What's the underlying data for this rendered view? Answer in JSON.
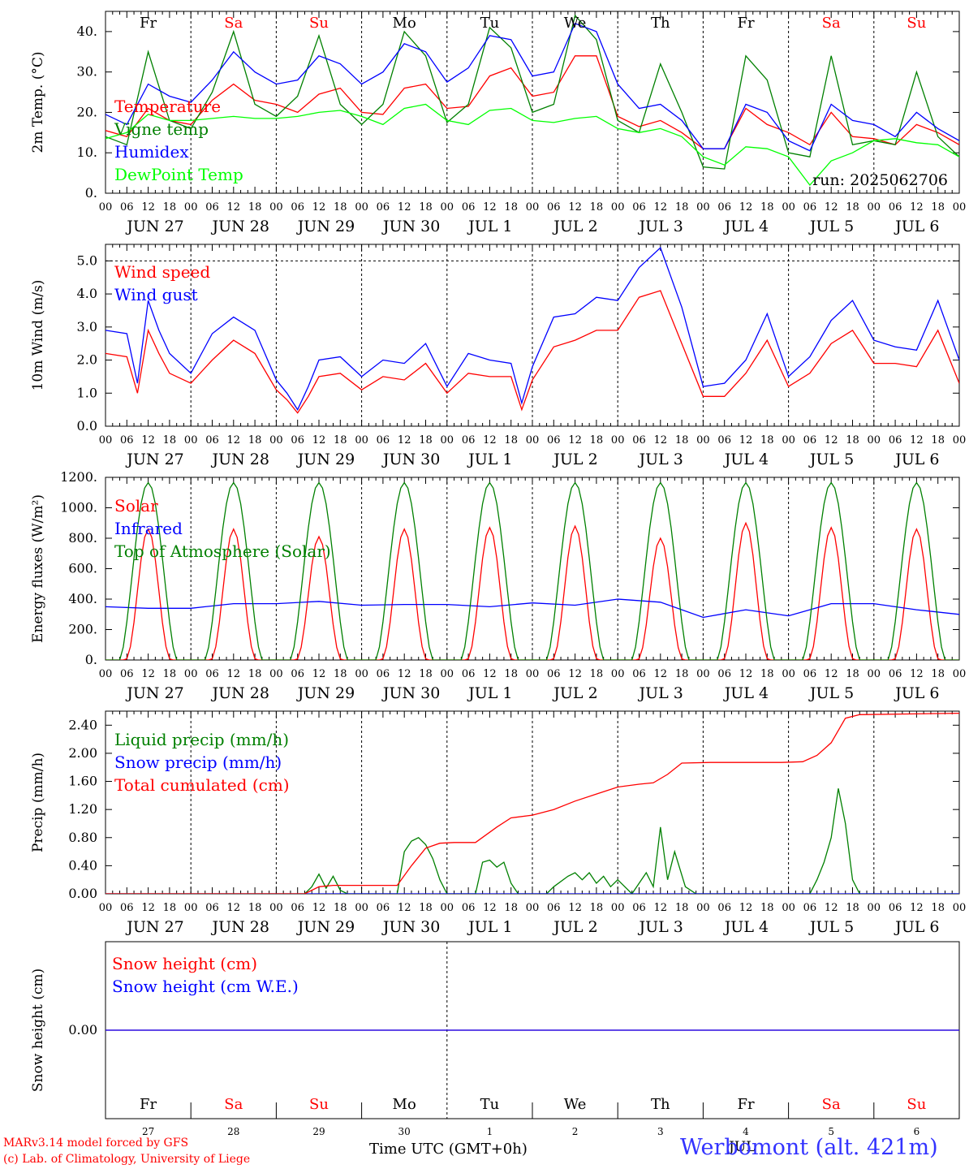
{
  "chart_data": [
    {
      "id": "temp",
      "type": "line",
      "ylabel": "2m Temp. (°C)",
      "ylim": [
        0,
        45
      ],
      "yticks": [
        "0.",
        "10.",
        "20.",
        "30.",
        "40."
      ],
      "ytick_values": [
        0,
        10,
        20,
        30,
        40
      ],
      "hlines": [],
      "x_unit": "hours since 2025-06-27 00 UTC",
      "xlim": [
        0,
        240
      ],
      "series": [
        {
          "name": "Temperature",
          "color": "#ff0000",
          "x": [
            0,
            6,
            12,
            18,
            24,
            30,
            36,
            42,
            48,
            54,
            60,
            66,
            72,
            78,
            84,
            90,
            96,
            102,
            108,
            114,
            120,
            126,
            132,
            138,
            144,
            150,
            156,
            162,
            168,
            174,
            180,
            186,
            192,
            198,
            204,
            210,
            216,
            222,
            228,
            234,
            240
          ],
          "y": [
            15.5,
            14,
            21,
            18,
            17,
            23,
            27,
            23,
            22,
            20,
            24.5,
            26,
            20,
            19.5,
            26,
            27,
            21,
            21.5,
            29,
            31,
            24,
            25,
            34,
            34,
            19,
            16.5,
            18,
            15,
            11,
            11,
            21,
            17,
            15,
            12,
            20,
            14,
            13.5,
            12,
            17,
            15,
            12
          ]
        },
        {
          "name": "Vigne temp",
          "color": "#008000",
          "x": [
            0,
            6,
            12,
            18,
            24,
            30,
            36,
            42,
            48,
            54,
            60,
            66,
            72,
            78,
            84,
            90,
            96,
            102,
            108,
            114,
            120,
            126,
            132,
            138,
            144,
            150,
            156,
            162,
            168,
            174,
            180,
            186,
            192,
            198,
            204,
            210,
            216,
            222,
            228,
            234,
            240
          ],
          "y": [
            14,
            12,
            35,
            18,
            16,
            25,
            40,
            22,
            19,
            24,
            39,
            22,
            17,
            22,
            40,
            34,
            17.5,
            22,
            41,
            36,
            20,
            22,
            44,
            38,
            18,
            15,
            32,
            20,
            6.5,
            6,
            34,
            28,
            10,
            9,
            34,
            12,
            13,
            12,
            30,
            14,
            9
          ]
        },
        {
          "name": "Humidex",
          "color": "#0000ff",
          "x": [
            0,
            6,
            12,
            18,
            24,
            30,
            36,
            42,
            48,
            54,
            60,
            66,
            72,
            78,
            84,
            90,
            96,
            102,
            108,
            114,
            120,
            126,
            132,
            138,
            144,
            150,
            156,
            162,
            168,
            174,
            180,
            186,
            192,
            198,
            204,
            210,
            216,
            222,
            228,
            234,
            240
          ],
          "y": [
            19.5,
            17,
            27,
            24,
            22.5,
            28,
            35,
            30,
            27,
            28,
            34,
            32,
            27,
            30,
            37,
            35,
            27.5,
            31,
            39,
            38,
            29,
            30,
            42,
            40,
            27,
            21,
            22,
            18,
            11,
            11,
            22,
            20,
            13,
            10.5,
            22,
            18,
            17,
            14,
            20,
            16,
            13
          ]
        },
        {
          "name": "DewPoint Temp",
          "color": "#00ff00",
          "x": [
            0,
            6,
            12,
            18,
            24,
            30,
            36,
            42,
            48,
            54,
            60,
            66,
            72,
            78,
            84,
            90,
            96,
            102,
            108,
            114,
            120,
            126,
            132,
            138,
            144,
            150,
            156,
            162,
            168,
            174,
            180,
            186,
            192,
            198,
            204,
            210,
            216,
            222,
            228,
            234,
            240
          ],
          "y": [
            13.5,
            15,
            19.5,
            18,
            18,
            18.5,
            19,
            18.5,
            18.5,
            19,
            20,
            20.5,
            19,
            17,
            21,
            22,
            18,
            17,
            20.5,
            21,
            18,
            17.5,
            18.5,
            19,
            16,
            15,
            16,
            14,
            9,
            7,
            11.5,
            11,
            9,
            2,
            8,
            10,
            13,
            13.5,
            12.5,
            12,
            9
          ]
        }
      ],
      "annotation": "run: 2025062706"
    },
    {
      "id": "wind",
      "type": "line",
      "ylabel": "10m Wind (m/s)",
      "ylim": [
        0,
        5.5
      ],
      "yticks": [
        "0.0",
        "1.0",
        "2.0",
        "3.0",
        "4.0",
        "5.0"
      ],
      "ytick_values": [
        0,
        1,
        2,
        3,
        4,
        5
      ],
      "hlines": [
        5
      ],
      "x_unit": "hours since 2025-06-27 00 UTC",
      "xlim": [
        0,
        240
      ],
      "series": [
        {
          "name": "Wind speed",
          "color": "#ff0000",
          "x": [
            0,
            6,
            9,
            12,
            15,
            18,
            24,
            30,
            36,
            42,
            48,
            51,
            54,
            57,
            60,
            66,
            72,
            78,
            84,
            90,
            96,
            102,
            108,
            114,
            117,
            120,
            126,
            132,
            138,
            144,
            150,
            156,
            162,
            168,
            174,
            180,
            186,
            192,
            198,
            204,
            210,
            216,
            222,
            228,
            234,
            240
          ],
          "y": [
            2.2,
            2.1,
            1.0,
            2.9,
            2.2,
            1.6,
            1.3,
            2.0,
            2.6,
            2.2,
            1.1,
            0.8,
            0.4,
            0.9,
            1.5,
            1.6,
            1.1,
            1.5,
            1.4,
            1.9,
            1.0,
            1.6,
            1.5,
            1.5,
            0.5,
            1.4,
            2.4,
            2.6,
            2.9,
            2.9,
            3.9,
            4.1,
            2.5,
            0.9,
            0.9,
            1.6,
            2.6,
            1.2,
            1.6,
            2.5,
            2.9,
            1.9,
            1.9,
            1.8,
            2.9,
            1.3
          ]
        },
        {
          "name": "Wind gust",
          "color": "#0000ff",
          "x": [
            0,
            6,
            9,
            12,
            15,
            18,
            24,
            30,
            36,
            42,
            48,
            51,
            54,
            57,
            60,
            66,
            72,
            78,
            84,
            90,
            96,
            102,
            108,
            114,
            117,
            120,
            126,
            132,
            138,
            144,
            150,
            156,
            162,
            168,
            174,
            180,
            186,
            192,
            198,
            204,
            210,
            216,
            222,
            228,
            234,
            240
          ],
          "y": [
            2.9,
            2.8,
            1.3,
            3.8,
            2.9,
            2.2,
            1.6,
            2.8,
            3.3,
            2.9,
            1.4,
            1.0,
            0.5,
            1.2,
            2.0,
            2.1,
            1.5,
            2.0,
            1.9,
            2.5,
            1.2,
            2.2,
            2.0,
            1.9,
            0.7,
            1.8,
            3.3,
            3.4,
            3.9,
            3.8,
            4.8,
            5.4,
            3.6,
            1.2,
            1.3,
            2.0,
            3.4,
            1.5,
            2.1,
            3.2,
            3.8,
            2.6,
            2.4,
            2.3,
            3.8,
            2.0
          ]
        }
      ]
    },
    {
      "id": "energy",
      "type": "line",
      "ylabel": "Energy fluxes (W/m²)",
      "ylim": [
        0,
        1200
      ],
      "yticks": [
        "0.",
        "200.",
        "400.",
        "600.",
        "800.",
        "1000.",
        "1200."
      ],
      "ytick_values": [
        0,
        200,
        400,
        600,
        800,
        1000,
        1200
      ],
      "hlines": [],
      "x_unit": "hours since 2025-06-27 00 UTC",
      "xlim": [
        0,
        240
      ],
      "series": [
        {
          "name": "Solar",
          "color": "#ff0000",
          "daily_peaks": [
            860,
            860,
            810,
            860,
            870,
            880,
            800,
            900,
            870,
            860
          ]
        },
        {
          "name": "Infrared",
          "color": "#0000ff",
          "x": [
            0,
            12,
            24,
            36,
            48,
            60,
            72,
            84,
            96,
            108,
            120,
            132,
            144,
            156,
            168,
            180,
            192,
            204,
            216,
            228,
            240
          ],
          "y": [
            350,
            340,
            340,
            370,
            370,
            385,
            360,
            365,
            365,
            350,
            375,
            360,
            400,
            380,
            280,
            330,
            290,
            370,
            370,
            330,
            300
          ]
        },
        {
          "name": "Top of Atmosphere (Solar)",
          "color": "#008000",
          "daily_peaks": [
            1165,
            1165,
            1165,
            1165,
            1165,
            1165,
            1165,
            1165,
            1165,
            1165
          ]
        }
      ]
    },
    {
      "id": "precip",
      "type": "line",
      "ylabel": "Precip (mm/h)",
      "ylim": [
        0,
        2.6
      ],
      "yticks": [
        "0.00",
        "0.40",
        "0.80",
        "1.20",
        "1.60",
        "2.00",
        "2.40"
      ],
      "ytick_values": [
        0,
        0.4,
        0.8,
        1.2,
        1.6,
        2.0,
        2.4
      ],
      "hlines": [],
      "x_unit": "hours since 2025-06-27 00 UTC",
      "xlim": [
        0,
        240
      ],
      "series": [
        {
          "name": "Liquid precip (mm/h)",
          "color": "#008000",
          "x": [
            0,
            56,
            58,
            60,
            62,
            64,
            66,
            68,
            70,
            82,
            84,
            86,
            88,
            90,
            92,
            94,
            96,
            98,
            104,
            106,
            108,
            110,
            112,
            114,
            116,
            120,
            124,
            126,
            130,
            132,
            134,
            136,
            138,
            140,
            142,
            144,
            148,
            150,
            152,
            154,
            156,
            158,
            160,
            163,
            166,
            168,
            198,
            200,
            202,
            204,
            206,
            208,
            210,
            212,
            240
          ],
          "y": [
            0,
            0,
            0.1,
            0.28,
            0.08,
            0.25,
            0.05,
            0,
            0,
            0,
            0.6,
            0.75,
            0.8,
            0.7,
            0.5,
            0.2,
            0,
            0,
            0,
            0.45,
            0.48,
            0.38,
            0.45,
            0.15,
            0,
            0,
            0,
            0.1,
            0.25,
            0.3,
            0.2,
            0.3,
            0.15,
            0.25,
            0.1,
            0.2,
            0,
            0.15,
            0.3,
            0.1,
            0.95,
            0.2,
            0.6,
            0.1,
            0,
            0,
            0,
            0.2,
            0.45,
            0.8,
            1.5,
            1.0,
            0.2,
            0,
            0
          ]
        },
        {
          "name": "Snow precip (mm/h)",
          "color": "#0000ff",
          "x": [
            0,
            240
          ],
          "y": [
            0,
            0
          ]
        },
        {
          "name": "Total cumulated (cm)",
          "color": "#ff0000",
          "x": [
            0,
            56,
            60,
            64,
            72,
            82,
            86,
            90,
            94,
            98,
            104,
            110,
            114,
            120,
            126,
            132,
            138,
            144,
            150,
            154,
            158,
            162,
            170,
            190,
            196,
            200,
            204,
            208,
            212,
            240
          ],
          "y": [
            0,
            0,
            0.1,
            0.12,
            0.12,
            0.12,
            0.4,
            0.65,
            0.72,
            0.73,
            0.73,
            0.95,
            1.08,
            1.12,
            1.2,
            1.32,
            1.42,
            1.52,
            1.56,
            1.58,
            1.7,
            1.86,
            1.87,
            1.87,
            1.88,
            1.97,
            2.15,
            2.5,
            2.55,
            2.57
          ]
        }
      ]
    },
    {
      "id": "snow",
      "type": "line",
      "ylabel": "Snow height (cm)",
      "ylim": [
        -1,
        1
      ],
      "yticks": [
        "0.00"
      ],
      "ytick_values": [
        0
      ],
      "hlines": [],
      "x_unit": "hours since 2025-06-27 00 UTC",
      "xlim": [
        0,
        240
      ],
      "series": [
        {
          "name": "Snow height (cm)",
          "color": "#ff0000",
          "x": [
            0,
            240
          ],
          "y": [
            0,
            0
          ]
        },
        {
          "name": "Snow height (cm W.E.)",
          "color": "#0000ff",
          "x": [
            0,
            240
          ],
          "y": [
            0,
            0
          ]
        }
      ]
    }
  ],
  "days": [
    {
      "abbr": "Fr",
      "date": "JUN 27",
      "num": "27",
      "weekend": false
    },
    {
      "abbr": "Sa",
      "date": "JUN 28",
      "num": "28",
      "weekend": true
    },
    {
      "abbr": "Su",
      "date": "JUN 29",
      "num": "29",
      "weekend": true
    },
    {
      "abbr": "Mo",
      "date": "JUN 30",
      "num": "30",
      "weekend": false
    },
    {
      "abbr": "Tu",
      "date": "JUL  1",
      "num": "1",
      "weekend": false
    },
    {
      "abbr": "We",
      "date": "JUL  2",
      "num": "2",
      "weekend": false
    },
    {
      "abbr": "Th",
      "date": "JUL  3",
      "num": "3",
      "weekend": false
    },
    {
      "abbr": "Fr",
      "date": "JUL  4",
      "num": "4",
      "weekend": false
    },
    {
      "abbr": "Sa",
      "date": "JUL  5",
      "num": "5",
      "weekend": true
    },
    {
      "abbr": "Su",
      "date": "JUL  6",
      "num": "6",
      "weekend": true
    }
  ],
  "hour_ticks": [
    "00",
    "06",
    "12",
    "18"
  ],
  "hour_end": "00",
  "colors": {
    "weekend": "#ff0000",
    "weekday": "#000000",
    "station": "#3333ff",
    "credit": "#ff0000"
  },
  "footer": {
    "credit_line1": "MARv3.14 model forced by GFS",
    "credit_line2": "(c) Lab. of Climatology, University of Liege",
    "xlabel": "Time UTC (GMT+0h)",
    "month": "JUL",
    "station": "Werbomont (alt. 421m)"
  }
}
